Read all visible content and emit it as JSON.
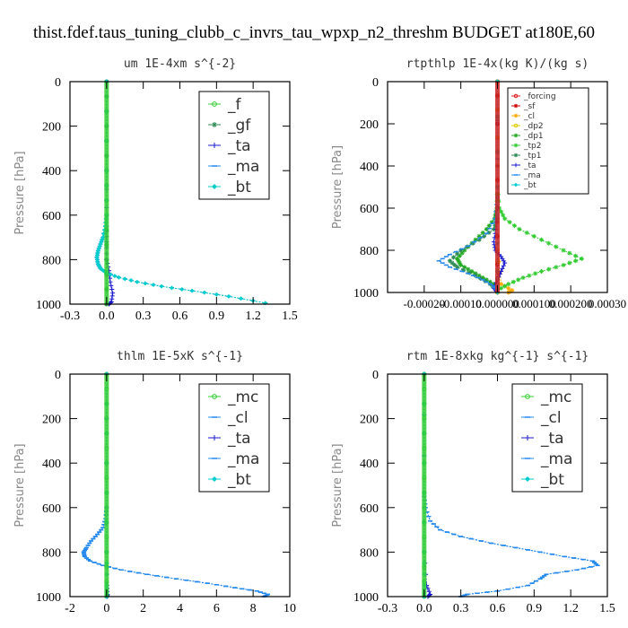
{
  "title": "thist.fdef.taus_tuning_clubb_c_invrs_tau_wpxp_n2_threshm  BUDGET at180E,60",
  "chart_data": [
    {
      "type": "line",
      "title": "um  1E-4xm s^{-2}",
      "ylabel": "Pressure [hPa]",
      "xlim": [
        -0.3,
        1.5
      ],
      "ylim": [
        1000,
        0
      ],
      "xticks": [
        "-0.3",
        "0.0",
        "0.3",
        "0.6",
        "0.9",
        "1.2",
        "1.5"
      ],
      "xtick_values": [
        -0.3,
        0,
        0.3,
        0.6,
        0.9,
        1.2,
        1.5
      ],
      "yticks": [
        "0",
        "200",
        "400",
        "600",
        "800",
        "1000"
      ],
      "ytick_values": [
        0,
        200,
        400,
        600,
        800,
        1000
      ],
      "legend": [
        "_f",
        "_gf",
        "_ta",
        "_ma",
        "_bt"
      ],
      "legend_position": "top-right",
      "series": [
        {
          "name": "_f",
          "color": "#33cc33",
          "marker": "circle",
          "x": [
            0,
            0,
            0,
            0,
            0,
            0
          ],
          "y": [
            0,
            200,
            400,
            600,
            800,
            1000
          ]
        },
        {
          "name": "_gf",
          "color": "#2e8b57",
          "marker": "star",
          "x": [
            0,
            0,
            0,
            0,
            0,
            0
          ],
          "y": [
            0,
            200,
            400,
            600,
            800,
            1000
          ]
        },
        {
          "name": "_ta",
          "color": "#1a1acc",
          "marker": "plus",
          "x": [
            0,
            0,
            0,
            0,
            0,
            0.02,
            0.03,
            0.05,
            0.04,
            0.02
          ],
          "y": [
            0,
            400,
            650,
            720,
            800,
            850,
            900,
            950,
            990,
            1000
          ]
        },
        {
          "name": "_ma",
          "color": "#2288ee",
          "marker": "dash",
          "x": [
            0,
            0,
            0,
            -0.01,
            -0.03,
            -0.05,
            -0.07,
            -0.08,
            -0.07,
            -0.05,
            0,
            0.1,
            0.25,
            0.45,
            0.7,
            1.0,
            1.3
          ],
          "y": [
            0,
            400,
            600,
            650,
            700,
            730,
            760,
            790,
            820,
            840,
            860,
            880,
            900,
            920,
            940,
            965,
            995
          ]
        },
        {
          "name": "_bt",
          "color": "#00cccc",
          "marker": "diamond",
          "x": [
            0,
            0,
            0,
            -0.01,
            -0.03,
            -0.05,
            -0.07,
            -0.08,
            -0.07,
            -0.05,
            0,
            0.1,
            0.25,
            0.45,
            0.7,
            1.0,
            1.3
          ],
          "y": [
            0,
            400,
            600,
            650,
            700,
            730,
            760,
            790,
            820,
            840,
            860,
            880,
            900,
            920,
            940,
            965,
            995
          ]
        }
      ]
    },
    {
      "type": "line",
      "title": "rtpthlp  1E-4x(kg K)/(kg s)",
      "ylabel": "Pressure [hPa]",
      "xlim": [
        -0.0003,
        0.0003
      ],
      "ylim": [
        1000,
        0
      ],
      "xticks": [
        "-0.00020",
        "-0.00010",
        "0.000000",
        "0.000100",
        "0.000200",
        "0.00030"
      ],
      "xtick_values": [
        -0.0002,
        -0.0001,
        0,
        0.0001,
        0.0002,
        0.0003
      ],
      "yticks": [
        "0",
        "200",
        "400",
        "600",
        "800",
        "1000"
      ],
      "ytick_values": [
        0,
        200,
        400,
        600,
        800,
        1000
      ],
      "legend": [
        "_forcing",
        "_sf",
        "_cl",
        "_dp2",
        "_dp1",
        "_tp2",
        "_tp1",
        "_ta",
        "_ma",
        "_bt"
      ],
      "legend_position": "top-right",
      "series": [
        {
          "name": "_forcing",
          "color": "#dd2222",
          "marker": "circle",
          "x": [
            0,
            0,
            0,
            0,
            0,
            0
          ],
          "y": [
            0,
            200,
            400,
            600,
            800,
            1000
          ]
        },
        {
          "name": "_sf",
          "color": "#cc0000",
          "marker": "star",
          "x": [
            0,
            0,
            0,
            0,
            0,
            0
          ],
          "y": [
            0,
            200,
            400,
            600,
            800,
            1000
          ]
        },
        {
          "name": "_cl",
          "color": "#ffaa00",
          "marker": "star",
          "x": [
            0,
            0,
            0,
            1e-05,
            4e-05,
            3e-05
          ],
          "y": [
            0,
            400,
            800,
            960,
            990,
            1000
          ]
        },
        {
          "name": "_dp2",
          "color": "#ddcc00",
          "marker": "circle",
          "x": [
            0,
            0,
            0,
            0,
            0
          ],
          "y": [
            0,
            400,
            800,
            950,
            1000
          ]
        },
        {
          "name": "_dp1",
          "color": "#22aa22",
          "marker": "star",
          "x": [
            0,
            0,
            -2e-06,
            -8e-06,
            -3e-05,
            -6e-05,
            -9e-05,
            -0.00011,
            -0.0001,
            -7e-05,
            -4e-05,
            -1e-05,
            0
          ],
          "y": [
            0,
            500,
            600,
            650,
            700,
            750,
            800,
            840,
            870,
            900,
            930,
            960,
            990
          ]
        },
        {
          "name": "_tp2",
          "color": "#33cc33",
          "marker": "star",
          "x": [
            0,
            0,
            5e-06,
            2e-05,
            6e-05,
            0.00012,
            0.00018,
            0.00023,
            0.00018,
            0.00012,
            7e-05,
            3e-05,
            0
          ],
          "y": [
            0,
            500,
            600,
            650,
            700,
            750,
            800,
            840,
            870,
            900,
            930,
            960,
            990
          ]
        },
        {
          "name": "_tp1",
          "color": "#2e8b57",
          "marker": "star",
          "x": [
            0,
            0,
            0,
            -1e-05,
            -5e-05,
            -0.0001,
            -0.00013,
            -0.00011,
            -6e-05,
            -2e-05,
            0
          ],
          "y": [
            0,
            500,
            650,
            700,
            750,
            800,
            850,
            880,
            920,
            960,
            990
          ]
        },
        {
          "name": "_ta",
          "color": "#1a1acc",
          "marker": "plus",
          "x": [
            0,
            0,
            -4e-06,
            -1e-05,
            -6e-06,
            1e-05,
            2e-05,
            1e-05,
            0,
            -1e-05,
            0
          ],
          "y": [
            0,
            600,
            700,
            760,
            800,
            830,
            860,
            900,
            940,
            980,
            1000
          ]
        },
        {
          "name": "_ma",
          "color": "#2288ee",
          "marker": "dash",
          "x": [
            0,
            0,
            -6e-06,
            -3e-05,
            -8e-05,
            -0.00013,
            -0.00016,
            -0.00013,
            -8e-05,
            -4e-05,
            -1e-05,
            0
          ],
          "y": [
            0,
            550,
            650,
            720,
            780,
            820,
            850,
            880,
            910,
            940,
            970,
            990
          ]
        },
        {
          "name": "_bt",
          "color": "#00cccc",
          "marker": "diamond",
          "x": [
            0,
            0,
            0,
            0
          ],
          "y": [
            0,
            500,
            900,
            1000
          ]
        }
      ]
    },
    {
      "type": "line",
      "title": "thlm  1E-5xK s^{-1}",
      "ylabel": "Pressure [hPa]",
      "xlim": [
        -2,
        10
      ],
      "ylim": [
        1000,
        0
      ],
      "xticks": [
        "-2",
        "0",
        "2",
        "4",
        "6",
        "8",
        "10"
      ],
      "xtick_values": [
        -2,
        0,
        2,
        4,
        6,
        8,
        10
      ],
      "yticks": [
        "0",
        "200",
        "400",
        "600",
        "800",
        "1000"
      ],
      "ytick_values": [
        0,
        200,
        400,
        600,
        800,
        1000
      ],
      "legend": [
        "_mc",
        "_cl",
        "_ta",
        "_ma",
        "_bt"
      ],
      "legend_position": "top-right",
      "series": [
        {
          "name": "_mc",
          "color": "#33cc33",
          "marker": "circle",
          "x": [
            0,
            0,
            0,
            0,
            0,
            0
          ],
          "y": [
            0,
            200,
            400,
            600,
            800,
            1000
          ]
        },
        {
          "name": "_cl",
          "color": "#2288ee",
          "marker": "dash",
          "x": [
            0,
            0,
            -0.05,
            -0.2,
            -0.5,
            -0.85,
            -1.1,
            -1.25,
            -1.2,
            -0.9,
            -0.2,
            0.8,
            2.2,
            3.8,
            5.5,
            7,
            8.2,
            8.8,
            8.6
          ],
          "y": [
            0,
            600,
            650,
            690,
            720,
            750,
            780,
            800,
            820,
            840,
            860,
            880,
            900,
            920,
            940,
            960,
            975,
            990,
            1000
          ]
        },
        {
          "name": "_ta",
          "color": "#1a1acc",
          "marker": "plus",
          "x": [
            0,
            0,
            0,
            0.02,
            0.05,
            0.03
          ],
          "y": [
            0,
            400,
            800,
            950,
            990,
            1000
          ]
        },
        {
          "name": "_ma",
          "color": "#2288ee",
          "marker": "dash",
          "x": [
            0,
            0,
            -0.05,
            -0.2,
            -0.5,
            -0.85,
            -1.1,
            -1.25,
            -1.2,
            -0.9,
            -0.2,
            0.8,
            2.2,
            3.8,
            5.5,
            7,
            8.2,
            8.8,
            8.6
          ],
          "y": [
            0,
            600,
            650,
            690,
            720,
            750,
            780,
            800,
            820,
            840,
            860,
            880,
            900,
            920,
            940,
            960,
            975,
            990,
            1000
          ]
        },
        {
          "name": "_bt",
          "color": "#00cccc",
          "marker": "diamond",
          "x": [
            0,
            0,
            0,
            0,
            0
          ],
          "y": [
            0,
            400,
            800,
            950,
            1000
          ]
        }
      ]
    },
    {
      "type": "line",
      "title": "rtm  1E-8xkg kg^{-1} s^{-1}",
      "ylabel": "Pressure [hPa]",
      "xlim": [
        -0.3,
        1.5
      ],
      "ylim": [
        1000,
        0
      ],
      "xticks": [
        "-0.3",
        "0.0",
        "0.3",
        "0.6",
        "0.9",
        "1.2",
        "1.5"
      ],
      "xtick_values": [
        -0.3,
        0,
        0.3,
        0.6,
        0.9,
        1.2,
        1.5
      ],
      "yticks": [
        "0",
        "200",
        "400",
        "600",
        "800",
        "1000"
      ],
      "ytick_values": [
        0,
        200,
        400,
        600,
        800,
        1000
      ],
      "legend": [
        "_mc",
        "_cl",
        "_ta",
        "_ma",
        "_bt"
      ],
      "legend_position": "top-right",
      "series": [
        {
          "name": "_mc",
          "color": "#33cc33",
          "marker": "circle",
          "x": [
            0,
            0,
            0,
            0,
            0,
            0
          ],
          "y": [
            0,
            200,
            400,
            600,
            800,
            1000
          ]
        },
        {
          "name": "_cl",
          "color": "#2288ee",
          "marker": "dash",
          "x": [
            0,
            0,
            0.01,
            0.05,
            0.13,
            0.3,
            0.55,
            0.85,
            1.15,
            1.38,
            1.42,
            1.25,
            1.0,
            0.95,
            0.85,
            0.6,
            0.35,
            0.3
          ],
          "y": [
            0,
            550,
            600,
            660,
            700,
            730,
            760,
            790,
            820,
            840,
            860,
            880,
            900,
            920,
            950,
            975,
            990,
            1000
          ]
        },
        {
          "name": "_ta",
          "color": "#1a1acc",
          "marker": "plus",
          "x": [
            0,
            0,
            0,
            0.02,
            0.05,
            0.03
          ],
          "y": [
            0,
            400,
            800,
            950,
            990,
            1000
          ]
        },
        {
          "name": "_ma",
          "color": "#2288ee",
          "marker": "dash",
          "x": [
            0,
            0,
            0.01,
            0.05,
            0.13,
            0.3,
            0.55,
            0.85,
            1.15,
            1.38,
            1.42,
            1.25,
            1.0,
            0.95,
            0.85,
            0.6,
            0.35,
            0.3
          ],
          "y": [
            0,
            550,
            600,
            660,
            700,
            730,
            760,
            790,
            820,
            840,
            860,
            880,
            900,
            920,
            950,
            975,
            990,
            1000
          ]
        },
        {
          "name": "_bt",
          "color": "#00cccc",
          "marker": "diamond",
          "x": [
            0,
            0,
            0,
            0,
            0
          ],
          "y": [
            0,
            400,
            800,
            950,
            1000
          ]
        }
      ]
    }
  ]
}
